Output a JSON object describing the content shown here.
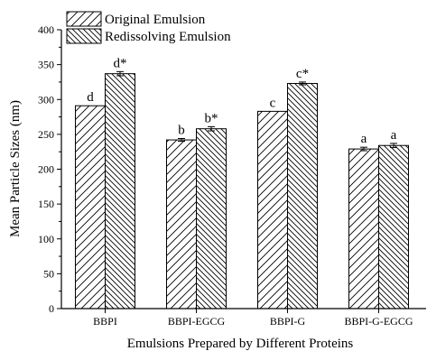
{
  "chart_data": {
    "type": "bar",
    "title": "",
    "xlabel": "Emulsions Prepared by Different Proteins",
    "ylabel": "Mean Particle Sizes (nm)",
    "ylim": [
      0,
      400
    ],
    "yticks": [
      0,
      50,
      100,
      150,
      200,
      250,
      300,
      350,
      400
    ],
    "categories": [
      "BBPI",
      "BBPI-EGCG",
      "BBPI-G",
      "BBPI-G-EGCG"
    ],
    "legend_position": "top-left",
    "grid": false,
    "series": [
      {
        "name": "Original Emulsion",
        "values": [
          291,
          242,
          283,
          229
        ],
        "errors": [
          0,
          2,
          0,
          2.5
        ],
        "labels": [
          "d",
          "b",
          "c",
          "a"
        ],
        "pattern": "diagonal-forward"
      },
      {
        "name": "Redissolving Emulsion",
        "values": [
          337,
          258,
          323,
          234
        ],
        "errors": [
          3,
          3,
          2,
          3
        ],
        "labels": [
          "d*",
          "b*",
          "c*",
          "a"
        ],
        "pattern": "diagonal-backward"
      }
    ]
  }
}
